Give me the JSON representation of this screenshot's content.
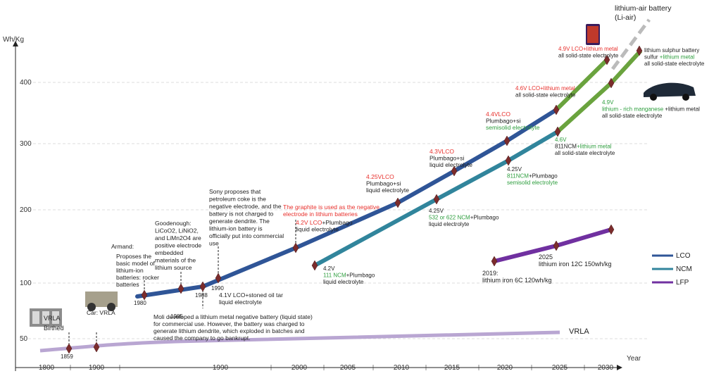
{
  "y_axis": {
    "title": "Wh/Kg",
    "ticks": [
      400,
      300,
      200,
      100,
      50
    ]
  },
  "x_axis": {
    "title": "Year",
    "ticks": [
      1800,
      1900,
      1990,
      2000,
      2005,
      2010,
      2015,
      2020,
      2025,
      2030
    ]
  },
  "legend": [
    "LCO",
    "NCM",
    "LFP"
  ],
  "vrla_label": "VRLA",
  "annotations": [
    {
      "lines": [
        [
          {
            "text": "VRLA",
            "color": "#222"
          }
        ],
        [
          {
            "text": "Birthed",
            "color": "#222"
          }
        ]
      ]
    },
    {
      "lines": [
        [
          {
            "text": "1859",
            "color": "#222"
          }
        ]
      ]
    },
    {
      "lines": [
        [
          {
            "text": "Car: VRLA",
            "color": "#222"
          }
        ]
      ]
    },
    {
      "lines": [
        [
          {
            "text": "Armand:",
            "color": "#222"
          }
        ]
      ]
    },
    {
      "lines": [
        [
          {
            "text": "Proposes the",
            "color": "#222"
          }
        ],
        [
          {
            "text": "basic model of",
            "color": "#222"
          }
        ],
        [
          {
            "text": "lithium-ion",
            "color": "#222"
          }
        ],
        [
          {
            "text": "batteries: rocker",
            "color": "#222"
          }
        ],
        [
          {
            "text": "batteries",
            "color": "#222"
          }
        ]
      ]
    },
    {
      "lines": [
        [
          {
            "text": "1980",
            "color": "#222"
          }
        ]
      ]
    },
    {
      "lines": [
        [
          {
            "text": "Goodenough:",
            "color": "#222"
          }
        ],
        [
          {
            "text": "LiCoO2, LiNiO2,",
            "color": "#222"
          }
        ],
        [
          {
            "text": "and LiMn2O4 are",
            "color": "#222"
          }
        ],
        [
          {
            "text": "positive electrode",
            "color": "#222"
          }
        ],
        [
          {
            "text": "embedded",
            "color": "#222"
          }
        ],
        [
          {
            "text": "materials of the",
            "color": "#222"
          }
        ],
        [
          {
            "text": "lithium source",
            "color": "#222"
          }
        ]
      ]
    },
    {
      "lines": [
        [
          {
            "text": "1985",
            "color": "#222"
          }
        ]
      ]
    },
    {
      "lines": [
        [
          {
            "text": "1988",
            "color": "#222"
          }
        ]
      ]
    },
    {
      "lines": [
        [
          {
            "text": "1990",
            "color": "#222"
          }
        ]
      ]
    },
    {
      "lines": [
        [
          {
            "text": "Sony proposes that",
            "color": "#222"
          }
        ],
        [
          {
            "text": "petroleum coke is the",
            "color": "#222"
          }
        ],
        [
          {
            "text": "negative electrode, and the",
            "color": "#222"
          }
        ],
        [
          {
            "text": "battery is not charged to",
            "color": "#222"
          }
        ],
        [
          {
            "text": "generate dendrite. The",
            "color": "#222"
          }
        ],
        [
          {
            "text": "lithium-ion battery is",
            "color": "#222"
          }
        ],
        [
          {
            "text": "officially put into commercial",
            "color": "#222"
          }
        ],
        [
          {
            "text": "use",
            "color": "#222"
          }
        ]
      ]
    },
    {
      "lines": [
        [
          {
            "text": "4.1V LCO+stoned oil tar",
            "color": "#222"
          }
        ],
        [
          {
            "text": "liquid electrolyte",
            "color": "#222"
          }
        ]
      ]
    },
    {
      "lines": [
        [
          {
            "text": "Moli developed a lithium metal negative battery (liquid state)",
            "color": "#222"
          }
        ],
        [
          {
            "text": "for commercial use. However, the battery was charged to",
            "color": "#222"
          }
        ],
        [
          {
            "text": "generate lithium dendrite, which exploded in batches and",
            "color": "#222"
          }
        ],
        [
          {
            "text": "caused the company to go bankrupt.",
            "color": "#222"
          }
        ]
      ]
    },
    {
      "lines": [
        [
          {
            "text": "The graphite is used as the negative",
            "color": "#e8302c"
          }
        ],
        [
          {
            "text": "electrode in lithium batteries",
            "color": "#e8302c"
          }
        ]
      ]
    },
    {
      "lines": [
        [
          {
            "text": "4.2V LCO",
            "color": "#e8302c"
          },
          {
            "text": "+Plumbago",
            "color": "#222"
          }
        ],
        [
          {
            "text": "liquid electrolyte",
            "color": "#222"
          }
        ]
      ]
    },
    {
      "lines": [
        [
          {
            "text": "4.2V",
            "color": "#222"
          }
        ],
        [
          {
            "text": "111 NCM",
            "color": "#2e9e3e"
          },
          {
            "text": "+Plumbago",
            "color": "#222"
          }
        ],
        [
          {
            "text": "liquid electrolyte",
            "color": "#222"
          }
        ]
      ]
    },
    {
      "lines": [
        [
          {
            "text": "4.25VLCO",
            "color": "#e8302c"
          }
        ],
        [
          {
            "text": "Plumbago+si",
            "color": "#222"
          }
        ],
        [
          {
            "text": "liquid electrolyte",
            "color": "#222"
          }
        ]
      ]
    },
    {
      "lines": [
        [
          {
            "text": "4.25V",
            "color": "#222"
          }
        ],
        [
          {
            "text": "532 or 622 NCM",
            "color": "#2e9e3e"
          },
          {
            "text": "+Plumbago",
            "color": "#222"
          }
        ],
        [
          {
            "text": "liquid electrolyte",
            "color": "#222"
          }
        ]
      ]
    },
    {
      "lines": [
        [
          {
            "text": "4.3VLCO",
            "color": "#e8302c"
          }
        ],
        [
          {
            "text": "Plumbago+si",
            "color": "#222"
          }
        ],
        [
          {
            "text": "liquid electrolyte",
            "color": "#222"
          }
        ]
      ]
    },
    {
      "lines": [
        [
          {
            "text": "4.25V",
            "color": "#222"
          }
        ],
        [
          {
            "text": "811NCM",
            "color": "#2e9e3e"
          },
          {
            "text": "+Plumbago",
            "color": "#222"
          }
        ],
        [
          {
            "text": "semisolid electrolyte",
            "color": "#2e9e3e"
          }
        ]
      ]
    },
    {
      "lines": [
        [
          {
            "text": "4.4VLCO",
            "color": "#e8302c"
          }
        ],
        [
          {
            "text": "Plumbago+si",
            "color": "#222"
          }
        ],
        [
          {
            "text": "semisolid electrolyte",
            "color": "#2e9e3e"
          }
        ]
      ]
    },
    {
      "lines": [
        [
          {
            "text": "4.6V",
            "color": "#2e9e3e"
          }
        ],
        [
          {
            "text": "811NCM",
            "color": "#222"
          },
          {
            "text": "+lithium metal",
            "color": "#2e9e3e"
          }
        ],
        [
          {
            "text": "all solid-state electrolyte",
            "color": "#222"
          }
        ]
      ]
    },
    {
      "lines": [
        [
          {
            "text": "4.6V LCO+lithium metal",
            "color": "#e8302c"
          }
        ],
        [
          {
            "text": "all solid-state electrolyte",
            "color": "#222"
          }
        ]
      ]
    },
    {
      "lines": [
        [
          {
            "text": "4.9V LCO+lithium metal",
            "color": "#e8302c"
          }
        ],
        [
          {
            "text": "all solid-state electrolyte",
            "color": "#222"
          }
        ]
      ]
    },
    {
      "lines": [
        [
          {
            "text": "4.9V",
            "color": "#2e9e3e"
          }
        ],
        [
          {
            "text": "lithium - rich manganese",
            "color": "#2e9e3e"
          },
          {
            "text": " +lithium metal",
            "color": "#222"
          }
        ],
        [
          {
            "text": "all solid-state electrolyte",
            "color": "#222"
          }
        ]
      ]
    },
    {
      "lines": [
        [
          {
            "text": "lithium sulphur battery",
            "color": "#222"
          }
        ],
        [
          {
            "text": "sulfur ",
            "color": "#222"
          },
          {
            "text": "+lithium metal",
            "color": "#2e9e3e"
          }
        ],
        [
          {
            "text": "all solid-state electrolyte",
            "color": "#222"
          }
        ]
      ]
    },
    {
      "lines": [
        [
          {
            "text": "lithium-air battery",
            "color": "#222"
          }
        ],
        [
          {
            "text": "(Li-air)",
            "color": "#222"
          }
        ]
      ]
    },
    {
      "lines": [
        [
          {
            "text": "2019:",
            "color": "#222"
          }
        ],
        [
          {
            "text": "lithium iron 6C 120wh/kg",
            "color": "#222"
          }
        ]
      ]
    },
    {
      "lines": [
        [
          {
            "text": "2025",
            "color": "#222"
          }
        ],
        [
          {
            "text": "lithium iron 12C 150wh/kg",
            "color": "#222"
          }
        ]
      ]
    }
  ]
}
